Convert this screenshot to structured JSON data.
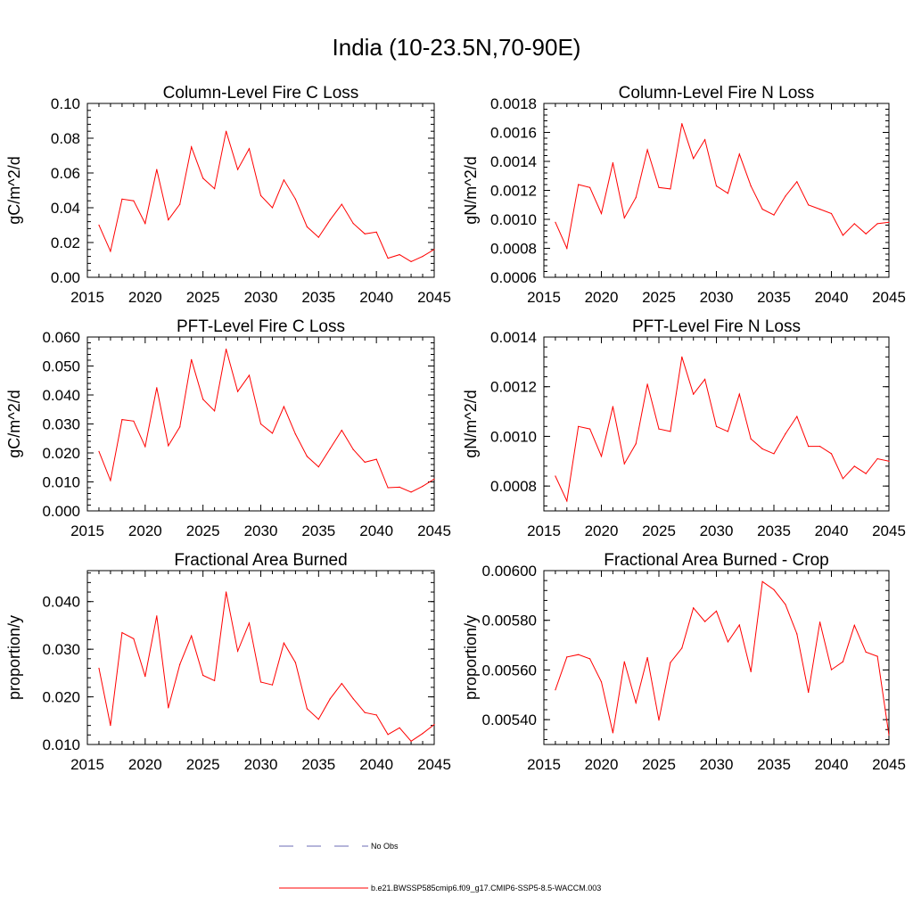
{
  "figure_title": "India (10-23.5N,70-90E)",
  "colors": {
    "series": "#ff0000",
    "obs": "#6b6bb5",
    "axis": "#000000"
  },
  "legend": {
    "obs_label": "No Obs",
    "model_label": "b.e21.BWSSP585cmip6.f09_g17.CMIP6-SSP5-8.5-WACCM.003"
  },
  "chart_data": [
    {
      "type": "line",
      "title": "Column-Level Fire C Loss",
      "ylabel": "gC/m^2/d",
      "xlim": [
        2015,
        2045
      ],
      "ylim": [
        0.0,
        0.1
      ],
      "xticks": [
        "2015",
        "2020",
        "2025",
        "2030",
        "2035",
        "2040",
        "2045"
      ],
      "yticks": [
        "0.00",
        "0.02",
        "0.04",
        "0.06",
        "0.08",
        "0.10"
      ],
      "x": [
        2016,
        2017,
        2018,
        2019,
        2020,
        2021,
        2022,
        2023,
        2024,
        2025,
        2026,
        2027,
        2028,
        2029,
        2030,
        2031,
        2032,
        2033,
        2034,
        2035,
        2036,
        2037,
        2038,
        2039,
        2040,
        2041,
        2042,
        2043,
        2044,
        2045
      ],
      "values": [
        0.03,
        0.015,
        0.045,
        0.044,
        0.031,
        0.062,
        0.033,
        0.042,
        0.075,
        0.057,
        0.051,
        0.084,
        0.062,
        0.074,
        0.047,
        0.04,
        0.056,
        0.045,
        0.029,
        0.023,
        0.033,
        0.042,
        0.031,
        0.025,
        0.026,
        0.011,
        0.013,
        0.009,
        0.012,
        0.016
      ]
    },
    {
      "type": "line",
      "title": "Column-Level Fire N Loss",
      "ylabel": "gN/m^2/d",
      "xlim": [
        2015,
        2045
      ],
      "ylim": [
        0.0006,
        0.0018
      ],
      "xticks": [
        "2015",
        "2020",
        "2025",
        "2030",
        "2035",
        "2040",
        "2045"
      ],
      "yticks": [
        "0.0006",
        "0.0008",
        "0.0010",
        "0.0012",
        "0.0014",
        "0.0016",
        "0.0018"
      ],
      "x": [
        2016,
        2017,
        2018,
        2019,
        2020,
        2021,
        2022,
        2023,
        2024,
        2025,
        2026,
        2027,
        2028,
        2029,
        2030,
        2031,
        2032,
        2033,
        2034,
        2035,
        2036,
        2037,
        2038,
        2039,
        2040,
        2041,
        2042,
        2043,
        2044,
        2045
      ],
      "values": [
        0.00098,
        0.0008,
        0.00124,
        0.00122,
        0.00104,
        0.00139,
        0.00101,
        0.00115,
        0.00148,
        0.00122,
        0.00121,
        0.00166,
        0.00142,
        0.00155,
        0.00123,
        0.00118,
        0.00145,
        0.00123,
        0.00107,
        0.00103,
        0.00116,
        0.00126,
        0.0011,
        0.00107,
        0.00104,
        0.00089,
        0.00097,
        0.0009,
        0.00097,
        0.00098
      ]
    },
    {
      "type": "line",
      "title": "PFT-Level Fire C Loss",
      "ylabel": "gC/m^2/d",
      "xlim": [
        2015,
        2045
      ],
      "ylim": [
        0.0,
        0.06
      ],
      "xticks": [
        "2015",
        "2020",
        "2025",
        "2030",
        "2035",
        "2040",
        "2045"
      ],
      "yticks": [
        "0.000",
        "0.010",
        "0.020",
        "0.030",
        "0.040",
        "0.050",
        "0.060"
      ],
      "x": [
        2016,
        2017,
        2018,
        2019,
        2020,
        2021,
        2022,
        2023,
        2024,
        2025,
        2026,
        2027,
        2028,
        2029,
        2030,
        2031,
        2032,
        2033,
        2034,
        2035,
        2036,
        2037,
        2038,
        2039,
        2040,
        2041,
        2042,
        2043,
        2044,
        2045
      ],
      "values": [
        0.0205,
        0.0105,
        0.0315,
        0.031,
        0.0222,
        0.0425,
        0.0225,
        0.029,
        0.0522,
        0.0385,
        0.0345,
        0.0558,
        0.0412,
        0.0468,
        0.03,
        0.0268,
        0.036,
        0.0265,
        0.0188,
        0.0152,
        0.0215,
        0.0278,
        0.0212,
        0.0168,
        0.0178,
        0.008,
        0.0082,
        0.0065,
        0.0085,
        0.011
      ]
    },
    {
      "type": "line",
      "title": "PFT-Level Fire N Loss",
      "ylabel": "gN/m^2/d",
      "xlim": [
        2015,
        2045
      ],
      "ylim": [
        0.0007,
        0.0014
      ],
      "xticks": [
        "2015",
        "2020",
        "2025",
        "2030",
        "2035",
        "2040",
        "2045"
      ],
      "yticks": [
        "0.0008",
        "0.0010",
        "0.0012",
        "0.0014"
      ],
      "x": [
        2016,
        2017,
        2018,
        2019,
        2020,
        2021,
        2022,
        2023,
        2024,
        2025,
        2026,
        2027,
        2028,
        2029,
        2030,
        2031,
        2032,
        2033,
        2034,
        2035,
        2036,
        2037,
        2038,
        2039,
        2040,
        2041,
        2042,
        2043,
        2044,
        2045
      ],
      "values": [
        0.00084,
        0.00074,
        0.00104,
        0.00103,
        0.00092,
        0.00112,
        0.00089,
        0.00097,
        0.00121,
        0.00103,
        0.00102,
        0.00132,
        0.00117,
        0.00123,
        0.00104,
        0.00102,
        0.00117,
        0.00099,
        0.00095,
        0.00093,
        0.00101,
        0.00108,
        0.00096,
        0.00096,
        0.00093,
        0.00083,
        0.00088,
        0.00085,
        0.00091,
        0.0009
      ]
    },
    {
      "type": "line",
      "title": "Fractional Area Burned",
      "ylabel": "proportion/y",
      "xlim": [
        2015,
        2045
      ],
      "ylim": [
        0.01,
        0.0465
      ],
      "xticks": [
        "2015",
        "2020",
        "2025",
        "2030",
        "2035",
        "2040",
        "2045"
      ],
      "yticks": [
        "0.010",
        "0.020",
        "0.030",
        "0.040"
      ],
      "x": [
        2016,
        2017,
        2018,
        2019,
        2020,
        2021,
        2022,
        2023,
        2024,
        2025,
        2026,
        2027,
        2028,
        2029,
        2030,
        2031,
        2032,
        2033,
        2034,
        2035,
        2036,
        2037,
        2038,
        2039,
        2040,
        2041,
        2042,
        2043,
        2044,
        2045
      ],
      "values": [
        0.026,
        0.014,
        0.0335,
        0.0322,
        0.0243,
        0.037,
        0.0177,
        0.0268,
        0.0328,
        0.0245,
        0.0234,
        0.042,
        0.0296,
        0.0355,
        0.0231,
        0.0225,
        0.0313,
        0.0272,
        0.0175,
        0.0153,
        0.0196,
        0.0228,
        0.0196,
        0.0167,
        0.0162,
        0.0121,
        0.0135,
        0.0107,
        0.0123,
        0.0142
      ]
    },
    {
      "type": "line",
      "title": "Fractional Area Burned - Crop",
      "ylabel": "proportion/y",
      "xlim": [
        2015,
        2045
      ],
      "ylim": [
        0.0053,
        0.006
      ],
      "xticks": [
        "2015",
        "2020",
        "2025",
        "2030",
        "2035",
        "2040",
        "2045"
      ],
      "yticks": [
        "0.00540",
        "0.00560",
        "0.00580",
        "0.00600"
      ],
      "x": [
        2016,
        2017,
        2018,
        2019,
        2020,
        2021,
        2022,
        2023,
        2024,
        2025,
        2026,
        2027,
        2028,
        2029,
        2030,
        2031,
        2032,
        2033,
        2034,
        2035,
        2036,
        2037,
        2038,
        2039,
        2040,
        2041,
        2042,
        2043,
        2044,
        2045
      ],
      "values": [
        0.00552,
        0.005652,
        0.005662,
        0.005645,
        0.005552,
        0.005347,
        0.005633,
        0.005468,
        0.00565,
        0.005398,
        0.00563,
        0.005688,
        0.00585,
        0.005795,
        0.005837,
        0.005713,
        0.005781,
        0.005593,
        0.005956,
        0.005923,
        0.005864,
        0.005745,
        0.00551,
        0.005793,
        0.005601,
        0.005633,
        0.00578,
        0.005672,
        0.005655,
        0.005338
      ]
    }
  ]
}
